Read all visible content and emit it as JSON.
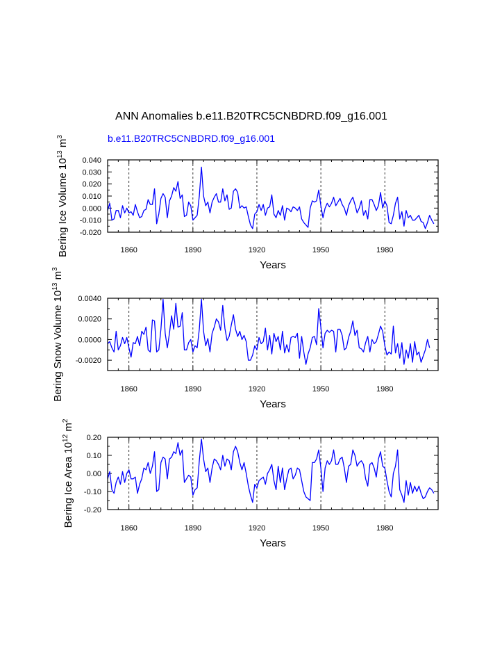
{
  "figure": {
    "title": "ANN Anomalies b.e11.B20TRC5CNBDRD.f09_g16.001",
    "case_label": "b.e11.B20TRC5CNBDRD.f09_g16.001",
    "case_label_color": "#0000ff",
    "line_color": "#0000ff"
  },
  "chart_data": [
    {
      "type": "line",
      "ylabel": "Bering Ice Volume 10^13 m^3",
      "ylabel_parts": [
        "Bering Ice Volume 10",
        "13",
        " m",
        "3"
      ],
      "xlabel": "Years",
      "xlim": [
        1850,
        2005
      ],
      "ylim": [
        -0.02,
        0.04
      ],
      "x_ticks": [
        1860,
        1890,
        1920,
        1950,
        1980
      ],
      "x_tick_labels": [
        "1860",
        "1890",
        "1920",
        "1950",
        "1980"
      ],
      "y_ticks": [
        -0.02,
        -0.01,
        0.0,
        0.01,
        0.02,
        0.03,
        0.04
      ],
      "y_tick_labels": [
        "-0.020",
        "-0.010",
        "0.000",
        "0.010",
        "0.020",
        "0.030",
        "0.040"
      ],
      "grid": "vertical dashed at labeled x ticks",
      "series": [
        {
          "x_start": 1850,
          "values": [
            -0.002,
            0.004,
            -0.01,
            -0.009,
            -0.002,
            -0.002,
            -0.008,
            0.002,
            -0.004,
            0.0,
            -0.004,
            -0.003,
            -0.006,
            0.003,
            -0.003,
            -0.008,
            -0.007,
            -0.002,
            -0.001,
            0.007,
            0.003,
            0.003,
            0.016,
            -0.013,
            -0.005,
            0.008,
            0.012,
            0.009,
            -0.008,
            0.006,
            0.01,
            0.017,
            0.014,
            0.022,
            0.008,
            0.011,
            -0.007,
            -0.006,
            0.005,
            0.002,
            -0.01,
            -0.008,
            -0.006,
            0.01,
            0.034,
            0.01,
            0.002,
            0.005,
            -0.004,
            0.005,
            0.009,
            0.012,
            0.005,
            0.005,
            0.016,
            0.006,
            0.011,
            -0.001,
            0.0,
            0.014,
            0.016,
            0.013,
            0.0,
            0.002,
            0.0,
            0.001,
            -0.007,
            -0.014,
            -0.017,
            -0.005,
            -0.003,
            0.003,
            -0.002,
            0.003,
            -0.006,
            0.0,
            0.001,
            0.011,
            -0.005,
            -0.008,
            -0.002,
            -0.006,
            0.002,
            -0.01,
            0.0,
            -0.001,
            -0.003,
            0.001,
            0.0,
            -0.002,
            0.001,
            -0.009,
            -0.012,
            -0.014,
            -0.016,
            0.0,
            0.006,
            0.005,
            0.006,
            0.015,
            0.002,
            -0.008,
            0.0,
            0.004,
            0.001,
            0.004,
            0.009,
            0.002,
            0.005,
            0.008,
            0.003,
            0.0,
            -0.006,
            0.002,
            0.006,
            0.009,
            0.003,
            -0.004,
            0.0,
            0.006,
            -0.006,
            -0.002,
            -0.009,
            0.007,
            0.007,
            0.003,
            -0.002,
            0.002,
            0.013,
            0.0,
            0.006,
            0.002,
            -0.012,
            -0.013,
            -0.006,
            0.004,
            0.009,
            -0.009,
            -0.003,
            -0.015,
            -0.002,
            -0.008,
            -0.006,
            -0.01,
            -0.01,
            -0.008,
            -0.006,
            -0.011,
            -0.012,
            -0.017,
            -0.012,
            -0.006,
            -0.01,
            -0.013
          ]
        }
      ]
    },
    {
      "type": "line",
      "ylabel": "Bering Snow Volume 10^13 m^3",
      "ylabel_parts": [
        "Bering Snow Volume 10",
        "13",
        " m",
        "3"
      ],
      "xlabel": "Years",
      "xlim": [
        1850,
        2005
      ],
      "ylim": [
        -0.003,
        0.004
      ],
      "x_ticks": [
        1860,
        1890,
        1920,
        1950,
        1980
      ],
      "x_tick_labels": [
        "1860",
        "1890",
        "1920",
        "1950",
        "1980"
      ],
      "y_ticks": [
        -0.002,
        0.0,
        0.002,
        0.004
      ],
      "y_tick_labels": [
        "-0.0020",
        "0.0000",
        "0.0020",
        "0.0040"
      ],
      "grid": "vertical dashed at labeled x ticks",
      "series": [
        {
          "x_start": 1850,
          "values": [
            -0.0004,
            -0.0002,
            -0.0008,
            -0.0012,
            0.0008,
            -0.001,
            -0.0006,
            0.0002,
            -0.0004,
            0.0002,
            -0.0008,
            -0.0017,
            -0.0003,
            -0.0004,
            0.0003,
            -0.0006,
            0.0008,
            0.0005,
            0.0012,
            -0.001,
            -0.0012,
            0.0019,
            0.0018,
            -0.0012,
            -0.001,
            0.001,
            0.0039,
            0.0006,
            -0.0008,
            0.0006,
            0.0023,
            0.001,
            0.0035,
            0.0012,
            0.0013,
            0.0026,
            -0.001,
            -0.001,
            -0.0003,
            0.0,
            -0.0012,
            -0.0006,
            -0.0008,
            0.001,
            0.0039,
            0.0008,
            -0.0006,
            0.0001,
            -0.0012,
            0.0006,
            0.0012,
            0.002,
            0.0017,
            0.0009,
            0.0033,
            0.0011,
            -0.0001,
            0.0003,
            0.0014,
            0.0024,
            0.001,
            0.0003,
            0.0008,
            0.0,
            0.0004,
            -0.0002,
            -0.002,
            -0.002,
            -0.0015,
            -0.0006,
            -0.001,
            0.0002,
            -0.0004,
            -0.0002,
            0.0011,
            -0.001,
            0.0004,
            -0.0014,
            0.0006,
            -0.0002,
            0.0003,
            -0.001,
            0.0008,
            -0.0013,
            -0.0005,
            -0.0012,
            0.0002,
            0.0003,
            0.0002,
            0.0006,
            -0.0018,
            0.0003,
            -0.0012,
            -0.0024,
            -0.0014,
            -0.0008,
            0.0002,
            0.0003,
            -0.0005,
            0.003,
            0.0012,
            -0.0008,
            0.0006,
            0.0009,
            0.0007,
            0.0009,
            0.0008,
            -0.0012,
            0.001,
            0.001,
            0.0004,
            -0.001,
            -0.0008,
            0.0002,
            0.0008,
            0.0018,
            0.0004,
            0.0009,
            -0.0008,
            -0.0009,
            -0.0012,
            -0.0003,
            0.0003,
            -0.0012,
            0.0,
            -0.0004,
            -0.0002,
            0.0005,
            0.0013,
            0.0008,
            -0.0006,
            -0.0015,
            -0.0012,
            -0.0014,
            0.0013,
            -0.0013,
            -0.0004,
            -0.0018,
            -0.0003,
            -0.0024,
            -0.001,
            -0.0018,
            -0.0004,
            -0.0022,
            -0.0002,
            -0.0015,
            -0.0012,
            -0.0022,
            -0.0016,
            -0.001,
            0.0,
            -0.0008
          ]
        }
      ]
    },
    {
      "type": "line",
      "ylabel": "Bering Ice Area 10^12 m^2",
      "ylabel_parts": [
        "Bering Ice Area 10",
        "12",
        " m",
        "2"
      ],
      "xlabel": "Years",
      "xlim": [
        1850,
        2005
      ],
      "ylim": [
        -0.2,
        0.2
      ],
      "x_ticks": [
        1860,
        1890,
        1920,
        1950,
        1980
      ],
      "x_tick_labels": [
        "1860",
        "1890",
        "1920",
        "1950",
        "1980"
      ],
      "y_ticks": [
        -0.2,
        -0.1,
        0.0,
        0.1,
        0.2
      ],
      "y_tick_labels": [
        "-0.20",
        "-0.10",
        "0.00",
        "0.10",
        "0.20"
      ],
      "grid": "vertical dashed at labeled x ticks",
      "series": [
        {
          "x_start": 1850,
          "values": [
            -0.03,
            0.01,
            -0.09,
            -0.11,
            -0.05,
            -0.02,
            -0.06,
            0.01,
            -0.05,
            0.0,
            0.02,
            -0.03,
            -0.03,
            -0.02,
            -0.11,
            -0.06,
            -0.03,
            0.03,
            0.02,
            0.06,
            0.0,
            0.04,
            0.12,
            -0.1,
            -0.09,
            0.06,
            0.09,
            0.08,
            -0.03,
            0.08,
            0.09,
            0.12,
            0.11,
            0.17,
            0.1,
            0.13,
            -0.05,
            -0.03,
            -0.01,
            -0.02,
            -0.12,
            -0.09,
            -0.08,
            0.07,
            0.19,
            0.08,
            0.01,
            0.03,
            -0.05,
            0.03,
            0.08,
            0.07,
            0.05,
            0.02,
            0.1,
            0.04,
            0.08,
            0.07,
            0.02,
            0.12,
            0.15,
            0.12,
            0.06,
            0.02,
            0.06,
            0.0,
            -0.07,
            -0.12,
            -0.16,
            -0.06,
            -0.08,
            -0.04,
            -0.03,
            -0.02,
            -0.06,
            0.0,
            0.02,
            0.05,
            -0.04,
            -0.09,
            0.04,
            -0.05,
            0.03,
            -0.09,
            -0.03,
            0.02,
            0.03,
            -0.03,
            -0.01,
            0.03,
            0.02,
            -0.04,
            -0.1,
            -0.13,
            -0.14,
            -0.15,
            0.06,
            0.06,
            0.08,
            0.13,
            0.03,
            -0.1,
            0.03,
            0.07,
            0.05,
            0.07,
            0.13,
            0.05,
            0.05,
            0.08,
            0.09,
            0.03,
            -0.05,
            0.04,
            0.05,
            0.13,
            0.1,
            0.04,
            0.06,
            0.07,
            0.05,
            -0.03,
            -0.07,
            0.05,
            0.06,
            0.03,
            -0.02,
            0.08,
            0.12,
            0.04,
            0.03,
            -0.04,
            -0.1,
            -0.13,
            0.0,
            0.04,
            0.13,
            -0.09,
            -0.12,
            -0.16,
            -0.04,
            -0.12,
            -0.05,
            -0.11,
            -0.07,
            -0.1,
            -0.07,
            -0.11,
            -0.14,
            -0.13,
            -0.1,
            -0.08,
            -0.09,
            -0.11
          ]
        }
      ]
    }
  ]
}
